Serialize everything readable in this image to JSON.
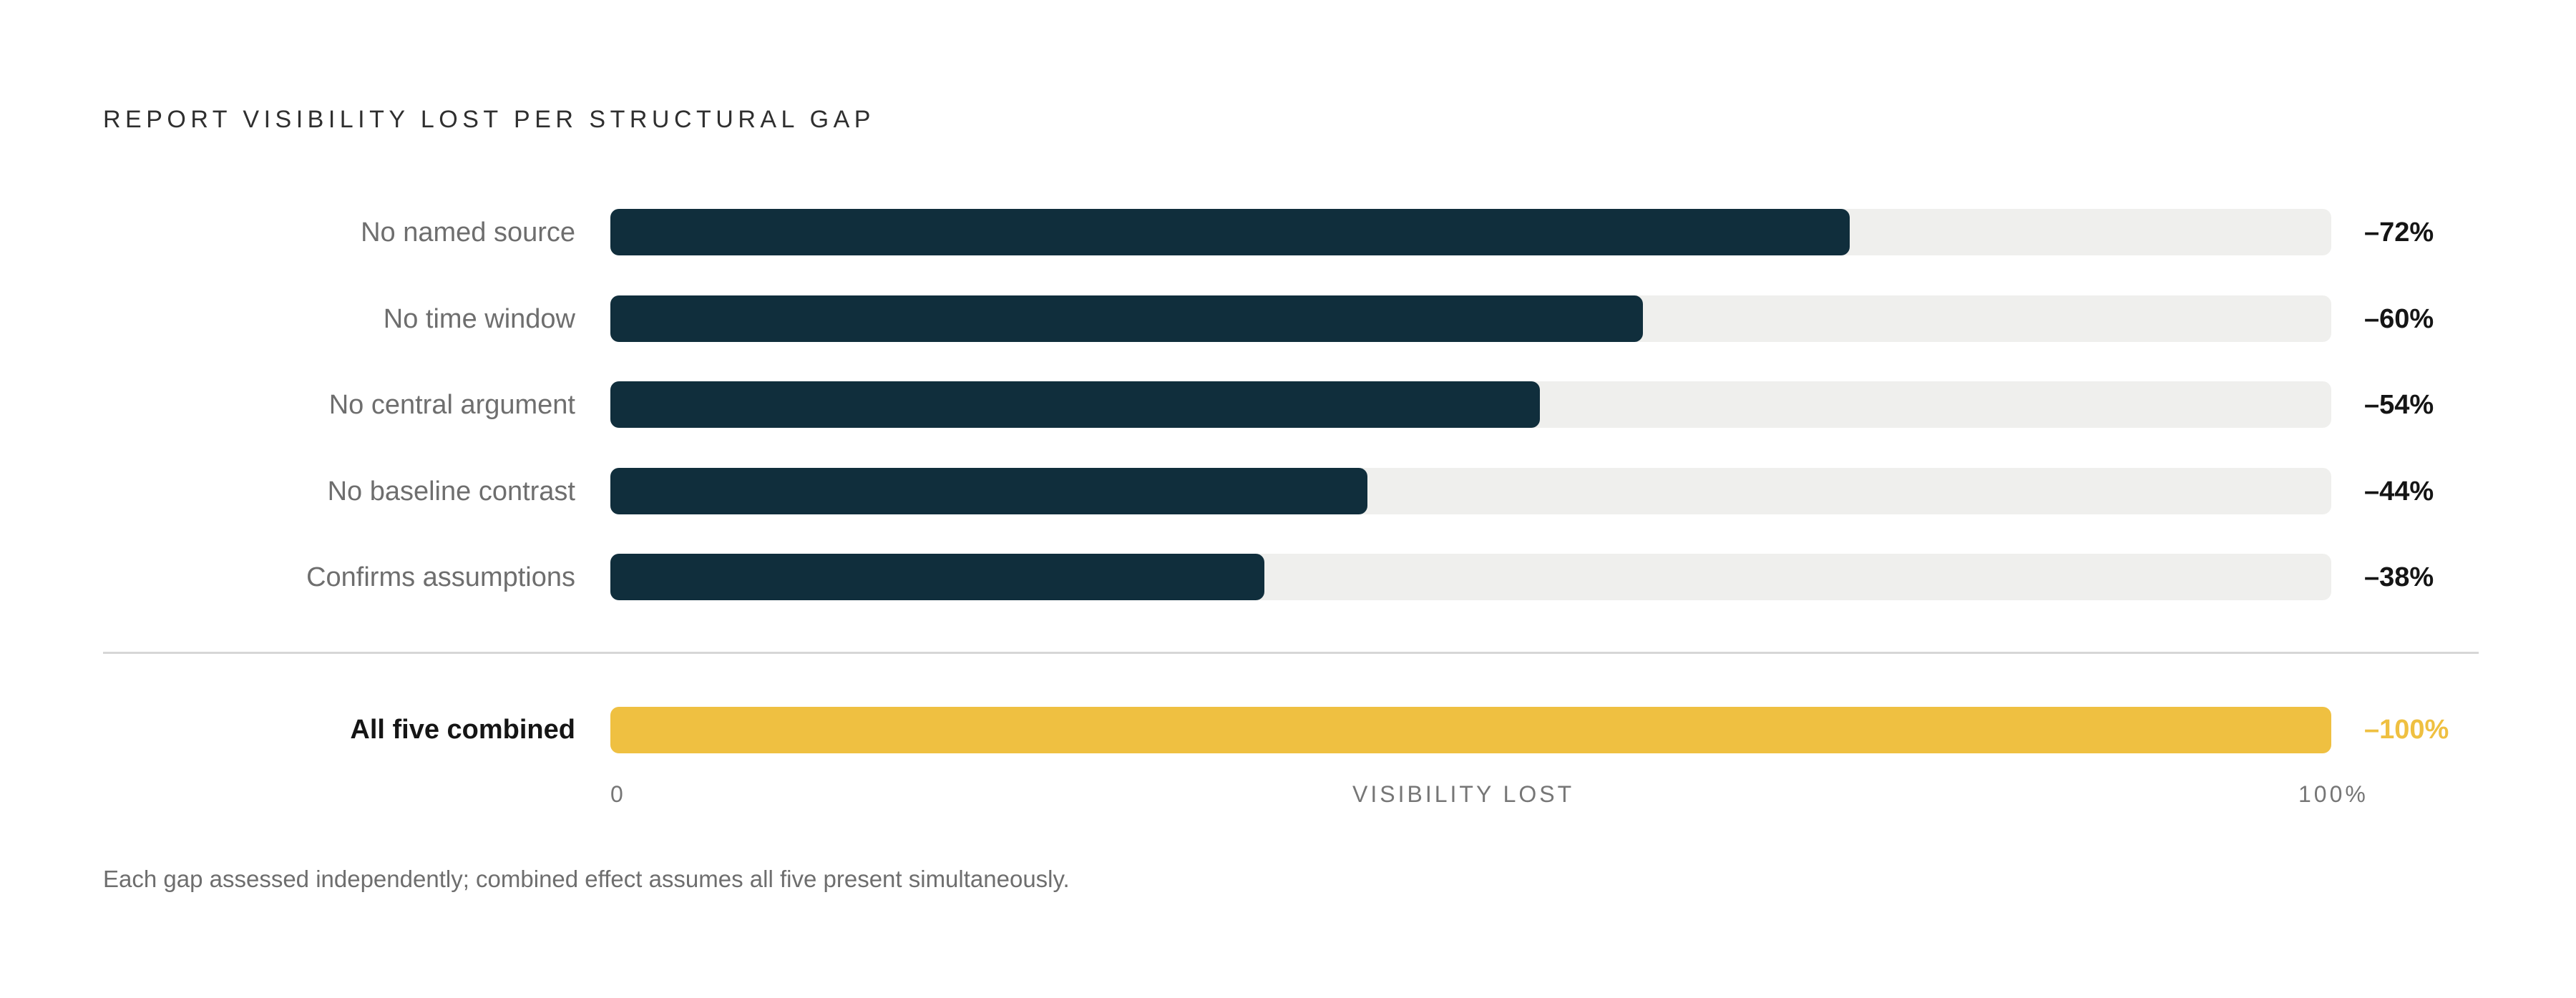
{
  "chart_data": {
    "type": "bar",
    "orientation": "horizontal",
    "title": "REPORT VISIBILITY LOST PER STRUCTURAL GAP",
    "categories": [
      "No named source",
      "No time window",
      "No central argument",
      "No baseline contrast",
      "Confirms assumptions"
    ],
    "values": [
      72,
      60,
      54,
      44,
      38
    ],
    "value_labels": [
      "–72%",
      "–60%",
      "–54%",
      "–44%",
      "–38%"
    ],
    "combined": {
      "label": "All five combined",
      "value": 100,
      "value_label": "–100%"
    },
    "xlabel": "VISIBILITY LOST",
    "x_tick_labels": [
      "0",
      "100%"
    ],
    "xlim": [
      0,
      100
    ],
    "grid": false,
    "colors": {
      "bar": "#102e3c",
      "track": "#efefed",
      "combined": "#efc041"
    },
    "footnote": "Each gap assessed independently; combined effect assumes all five present simultaneously."
  }
}
